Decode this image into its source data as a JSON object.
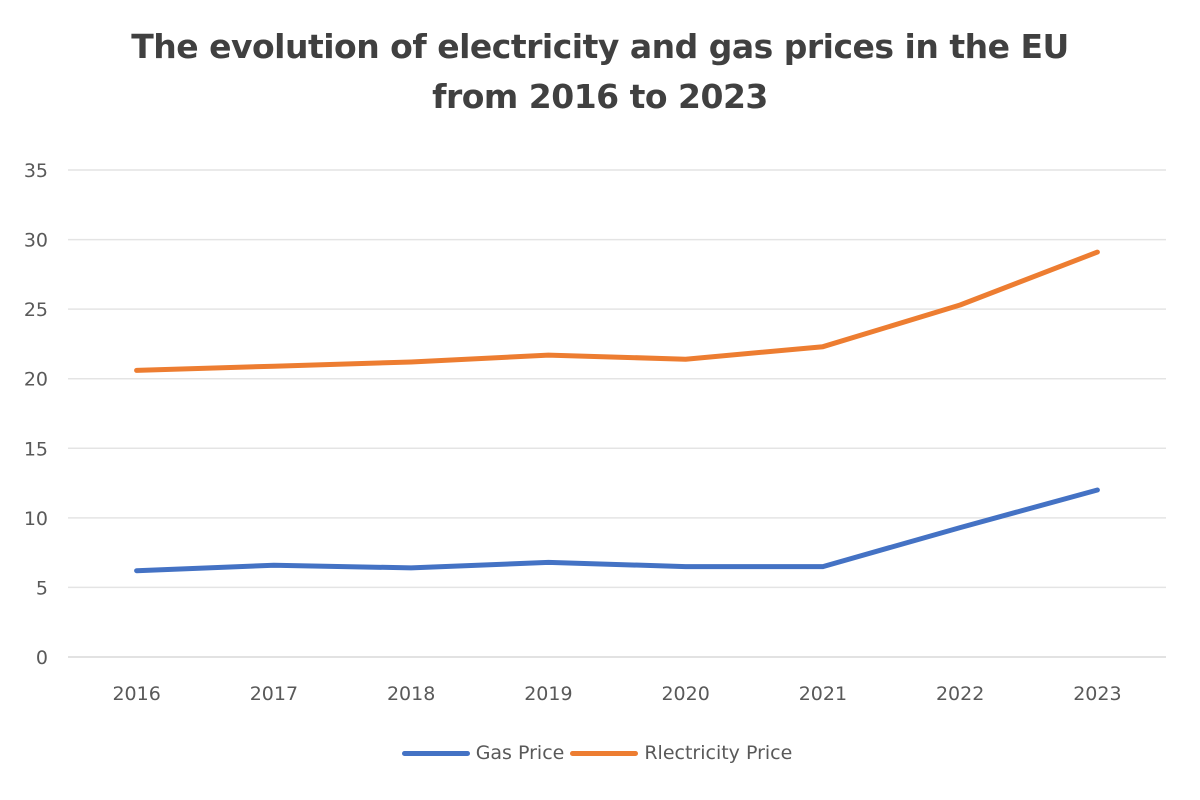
{
  "chart_data": {
    "type": "line",
    "title": "The evolution of electricity and gas prices in the EU from 2016 to 2023",
    "title_lines": [
      "The evolution of electricity and gas prices in the EU",
      "from 2016 to 2023"
    ],
    "xlabel": "",
    "ylabel": "",
    "categories": [
      "2016",
      "2017",
      "2018",
      "2019",
      "2020",
      "2021",
      "2022",
      "2023"
    ],
    "ylim": [
      0,
      35
    ],
    "yticks": [
      0,
      5,
      10,
      15,
      20,
      25,
      30,
      35
    ],
    "grid": true,
    "legend_position": "bottom",
    "series": [
      {
        "name": "Gas Price",
        "color": "#4472C4",
        "values": [
          6.2,
          6.6,
          6.4,
          6.8,
          6.5,
          6.5,
          9.3,
          12.0
        ]
      },
      {
        "name": "Rlectricity Price",
        "color": "#ED7D31",
        "values": [
          20.6,
          20.9,
          21.2,
          21.7,
          21.4,
          22.3,
          25.3,
          29.1
        ]
      }
    ]
  }
}
